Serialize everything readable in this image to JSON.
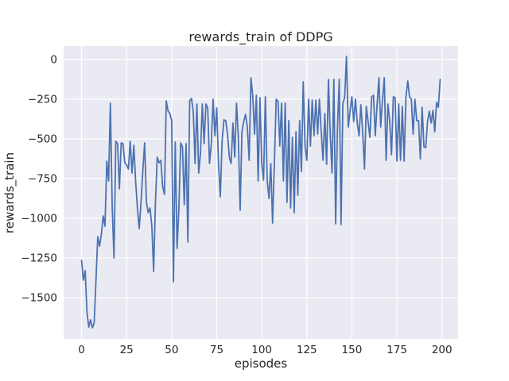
{
  "chart": {
    "title": "rewards_train of DDPG",
    "xlabel": "episodes",
    "ylabel": "rewards_train"
  },
  "chart_data": {
    "type": "line",
    "title": "rewards_train of DDPG",
    "xlabel": "episodes",
    "ylabel": "rewards_train",
    "grid": true,
    "legend": false,
    "xlim": [
      -9.95,
      208.95
    ],
    "ylim": [
      -1760,
      85
    ],
    "xticks": {
      "values": [
        0,
        25,
        50,
        75,
        100,
        125,
        150,
        175,
        200
      ],
      "labels": [
        "0",
        "25",
        "50",
        "75",
        "100",
        "125",
        "150",
        "175",
        "200"
      ]
    },
    "yticks": {
      "values": [
        0,
        -250,
        -500,
        -750,
        -1000,
        -1250,
        -1500
      ],
      "labels": [
        "0",
        "−250",
        "−500",
        "−750",
        "−1000",
        "−1250",
        "−1500"
      ]
    },
    "style": {
      "line_color": "#4C72B0",
      "axes_bg": "#EAEAF2",
      "grid_color": "#FFFFFF",
      "fig_bg": "#FFFFFF",
      "text_color": "#262626"
    },
    "series": [
      {
        "name": "rewards_train",
        "x_start": 0,
        "x_step": 1,
        "values": [
          -1265,
          -1390,
          -1330,
          -1590,
          -1685,
          -1640,
          -1690,
          -1660,
          -1390,
          -1115,
          -1175,
          -1100,
          -985,
          -1050,
          -640,
          -765,
          -275,
          -925,
          -1250,
          -515,
          -530,
          -815,
          -525,
          -530,
          -650,
          -665,
          -690,
          -515,
          -715,
          -540,
          -765,
          -935,
          -1065,
          -900,
          -700,
          -525,
          -900,
          -965,
          -935,
          -1050,
          -1335,
          -900,
          -615,
          -650,
          -635,
          -800,
          -850,
          -260,
          -325,
          -340,
          -385,
          -1400,
          -520,
          -1190,
          -945,
          -525,
          -550,
          -915,
          -530,
          -1150,
          -260,
          -245,
          -330,
          -655,
          -280,
          -715,
          -590,
          -280,
          -530,
          -280,
          -305,
          -655,
          -530,
          -250,
          -480,
          -305,
          -655,
          -865,
          -510,
          -380,
          -385,
          -470,
          -615,
          -655,
          -400,
          -615,
          -275,
          -490,
          -950,
          -455,
          -390,
          -345,
          -425,
          -635,
          -115,
          -230,
          -470,
          -225,
          -765,
          -240,
          -655,
          -760,
          -235,
          -760,
          -875,
          -655,
          -1030,
          -655,
          -250,
          -260,
          -545,
          -275,
          -765,
          -275,
          -900,
          -385,
          -935,
          -490,
          -965,
          -455,
          -855,
          -385,
          -705,
          -140,
          -545,
          -635,
          -250,
          -545,
          -255,
          -480,
          -255,
          -470,
          -250,
          -455,
          -635,
          -340,
          -660,
          -125,
          -470,
          -715,
          -125,
          -1035,
          -430,
          -125,
          -1040,
          -275,
          -240,
          20,
          -425,
          -325,
          -235,
          -390,
          -250,
          -400,
          -480,
          -285,
          -455,
          -690,
          -295,
          -390,
          -490,
          -235,
          -225,
          -480,
          -285,
          -115,
          -425,
          -250,
          -115,
          -635,
          -280,
          -390,
          -600,
          -235,
          -240,
          -640,
          -280,
          -635,
          -295,
          -640,
          -235,
          -135,
          -235,
          -250,
          -470,
          -250,
          -385,
          -385,
          -625,
          -300,
          -550,
          -555,
          -390,
          -325,
          -400,
          -320,
          -455,
          -270,
          -300,
          -125
        ]
      }
    ]
  }
}
